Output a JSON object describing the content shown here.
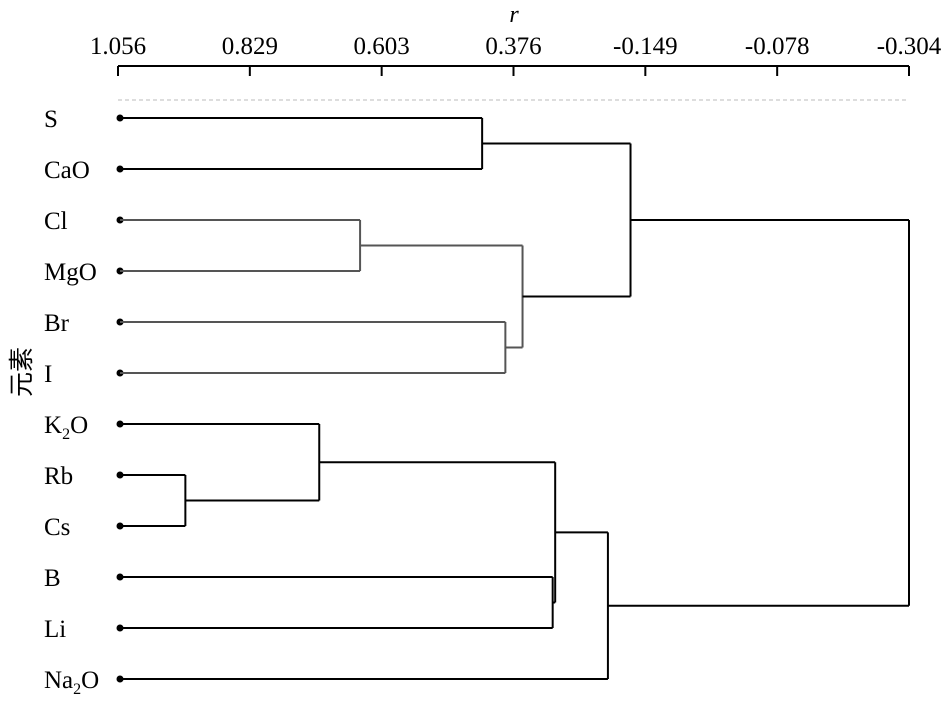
{
  "axis": {
    "label": "r",
    "ticks": [
      "1.056",
      "0.829",
      "0.603",
      "0.376",
      "-0.149",
      "-0.078",
      "-0.304"
    ]
  },
  "y_axis_label": "元素",
  "leaves": [
    {
      "name": "S",
      "base": "S",
      "sub": "",
      "tail": ""
    },
    {
      "name": "CaO",
      "base": "CaO",
      "sub": "",
      "tail": ""
    },
    {
      "name": "Cl",
      "base": "Cl",
      "sub": "",
      "tail": ""
    },
    {
      "name": "MgO",
      "base": "MgO",
      "sub": "",
      "tail": ""
    },
    {
      "name": "Br",
      "base": "Br",
      "sub": "",
      "tail": ""
    },
    {
      "name": "I",
      "base": "I",
      "sub": "",
      "tail": ""
    },
    {
      "name": "K2O",
      "base": "K",
      "sub": "2",
      "tail": "O"
    },
    {
      "name": "Rb",
      "base": "Rb",
      "sub": "",
      "tail": ""
    },
    {
      "name": "Cs",
      "base": "Cs",
      "sub": "",
      "tail": ""
    },
    {
      "name": "B",
      "base": "B",
      "sub": "",
      "tail": ""
    },
    {
      "name": "Li",
      "base": "Li",
      "sub": "",
      "tail": ""
    },
    {
      "name": "Na2O",
      "base": "Na",
      "sub": "2",
      "tail": "O"
    }
  ],
  "tree": {
    "r": -0.304,
    "children": [
      {
        "r": -0.09,
        "children": [
          {
            "r": 0.43,
            "children": [
              {
                "leaf": 0
              },
              {
                "leaf": 1
              }
            ]
          },
          {
            "r": 0.34,
            "color": "#555555",
            "children": [
              {
                "r": 0.64,
                "color": "#555555",
                "children": [
                  {
                    "leaf": 2
                  },
                  {
                    "leaf": 3
                  }
                ]
              },
              {
                "r": 0.39,
                "color": "#555555",
                "children": [
                  {
                    "leaf": 4
                  },
                  {
                    "leaf": 5
                  }
                ]
              }
            ]
          }
        ]
      },
      {
        "r": 0.0,
        "children": [
          {
            "r": 0.21,
            "children": [
              {
                "r": 0.71,
                "children": [
                  {
                    "leaf": 6
                  },
                  {
                    "r": 0.94,
                    "children": [
                      {
                        "leaf": 7
                      },
                      {
                        "leaf": 8
                      }
                    ]
                  }
                ]
              },
              {
                "r": 0.22,
                "children": [
                  {
                    "leaf": 9
                  },
                  {
                    "leaf": 10
                  }
                ]
              }
            ]
          },
          {
            "leaf": 11
          }
        ]
      }
    ]
  }
}
